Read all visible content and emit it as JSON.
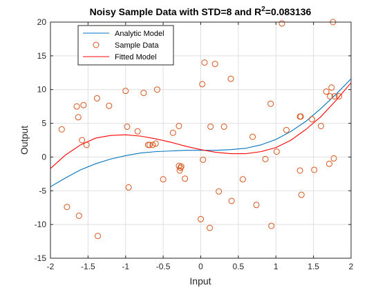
{
  "chart_data": {
    "type": "scatter",
    "title_main": "Noisy Sample Data with STD=8 and R",
    "title_sup": "2",
    "title_tail": "=0.083136",
    "xlabel": "Input",
    "ylabel": "Output",
    "xlim": [
      -2,
      2
    ],
    "ylim": [
      -15,
      20
    ],
    "xticks": [
      -2,
      -1.5,
      -1,
      -0.5,
      0,
      0.5,
      1,
      1.5,
      2
    ],
    "yticks": [
      -15,
      -10,
      -5,
      0,
      5,
      10,
      15,
      20
    ],
    "xtick_labels": [
      "-2",
      "-1.5",
      "-1",
      "-0.5",
      "0",
      "0.5",
      "1",
      "1.5",
      "2"
    ],
    "ytick_labels": [
      "-15",
      "-10",
      "-5",
      "0",
      "5",
      "10",
      "15",
      "20"
    ],
    "grid": true,
    "legend_placement": "top-left",
    "series": [
      {
        "name": "Analytic Model",
        "kind": "line",
        "color": "#0072BD",
        "x": [
          -2,
          -1.8,
          -1.6,
          -1.4,
          -1.2,
          -1,
          -0.8,
          -0.6,
          -0.4,
          -0.2,
          0,
          0.2,
          0.4,
          0.6,
          0.8,
          1,
          1.2,
          1.4,
          1.6,
          1.8,
          2
        ],
        "y": [
          -4.4,
          -3.1,
          -1.9,
          -1.0,
          -0.3,
          0.2,
          0.6,
          0.8,
          0.9,
          1.0,
          1.0,
          1.0,
          1.1,
          1.3,
          1.8,
          2.6,
          3.8,
          5.3,
          7.2,
          9.3,
          11.6
        ]
      },
      {
        "name": "Sample Data",
        "kind": "scatter",
        "color": "#D95319",
        "x": [
          -1.85,
          -1.78,
          -1.65,
          -1.63,
          -1.62,
          -1.58,
          -1.56,
          -1.52,
          -1.38,
          -1.37,
          -1.22,
          -1.0,
          -0.98,
          -0.96,
          -0.84,
          -0.76,
          -0.7,
          -0.68,
          -0.64,
          -0.6,
          -0.58,
          -0.5,
          -0.37,
          -0.29,
          -0.29,
          -0.28,
          -0.27,
          -0.26,
          -0.21,
          0.0,
          0.02,
          0.03,
          0.05,
          0.12,
          0.13,
          0.19,
          0.24,
          0.31,
          0.4,
          0.41,
          0.56,
          0.69,
          0.74,
          0.86,
          0.93,
          0.94,
          1.01,
          1.08,
          1.14,
          1.32,
          1.32,
          1.34,
          1.33,
          1.48,
          1.51,
          1.6,
          1.67,
          1.71,
          1.72,
          1.74,
          1.76,
          1.77,
          1.78,
          1.84
        ],
        "y": [
          4.1,
          -7.4,
          7.5,
          5.9,
          -8.7,
          2.5,
          7.7,
          1.8,
          8.7,
          -11.7,
          7.6,
          9.8,
          4.5,
          -4.5,
          3.8,
          9.5,
          1.8,
          1.8,
          1.8,
          2.0,
          10.0,
          -3.3,
          3.6,
          4.6,
          -1.3,
          -2.0,
          -1.6,
          -1.4,
          -3.2,
          -9.2,
          10.8,
          -0.4,
          14.0,
          -10.5,
          4.5,
          13.8,
          -5.1,
          4.5,
          11.6,
          -6.5,
          -3.3,
          3.0,
          -7.1,
          -0.3,
          7.9,
          -10.2,
          0.8,
          19.8,
          4.0,
          6.0,
          -2.0,
          -5.6,
          6.0,
          5.6,
          -1.9,
          4.6,
          9.7,
          -1.0,
          9.0,
          10.3,
          20.0,
          -0.2,
          9.0,
          9.0
        ]
      },
      {
        "name": "Fitted Model",
        "kind": "line",
        "color": "#FF0000",
        "x": [
          -2,
          -1.8,
          -1.6,
          -1.4,
          -1.2,
          -1,
          -0.8,
          -0.6,
          -0.4,
          -0.2,
          0,
          0.2,
          0.4,
          0.6,
          0.8,
          1,
          1.2,
          1.4,
          1.6,
          1.8,
          2
        ],
        "y": [
          -1.7,
          0.3,
          1.8,
          2.8,
          3.2,
          3.3,
          3.1,
          2.7,
          2.2,
          1.6,
          1.1,
          0.7,
          0.5,
          0.5,
          0.8,
          1.4,
          2.5,
          4.1,
          6.0,
          8.4,
          11.0
        ]
      }
    ]
  }
}
